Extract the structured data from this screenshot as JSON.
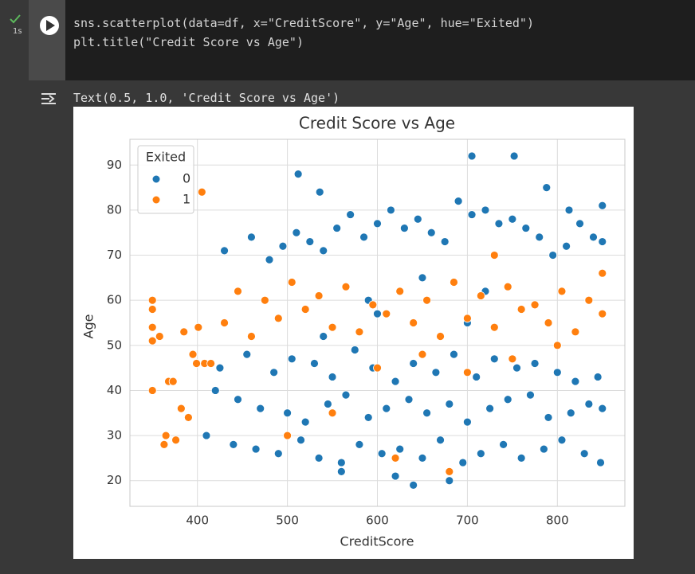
{
  "cell": {
    "status": "1s",
    "code": [
      "sns.scatterplot(data=df, x=\"CreditScore\", y=\"Age\", hue=\"Exited\")",
      "plt.title(\"Credit Score vs Age\")"
    ]
  },
  "output": {
    "text": "Text(0.5, 1.0, 'Credit Score vs Age')"
  },
  "chart_data": {
    "type": "scatter",
    "title": "Credit Score vs Age",
    "x_label": "CreditScore",
    "y_label": "Age",
    "legend_title": "Exited",
    "legend": "upper-left",
    "grid": true,
    "xlim": [
      325,
      875
    ],
    "xticks": [
      400,
      500,
      600,
      700,
      800
    ],
    "ylim": [
      14.3,
      95.7
    ],
    "yticks": [
      20,
      30,
      40,
      50,
      60,
      70,
      80,
      90
    ],
    "series": [
      {
        "name": "0",
        "color": "#1f77b4",
        "x": [
          705,
          752,
          512,
          536,
          788,
          850,
          813,
          430,
          460,
          480,
          495,
          510,
          525,
          540,
          555,
          570,
          585,
          600,
          615,
          630,
          645,
          660,
          675,
          690,
          705,
          720,
          735,
          750,
          765,
          780,
          795,
          810,
          825,
          840,
          850,
          420,
          445,
          470,
          500,
          520,
          545,
          565,
          590,
          610,
          635,
          655,
          680,
          700,
          725,
          745,
          770,
          790,
          815,
          835,
          850,
          410,
          440,
          465,
          490,
          515,
          535,
          560,
          580,
          605,
          625,
          650,
          670,
          695,
          715,
          740,
          760,
          785,
          805,
          830,
          848,
          425,
          455,
          485,
          505,
          530,
          550,
          575,
          595,
          620,
          640,
          665,
          685,
          710,
          730,
          755,
          775,
          800,
          820,
          845,
          620,
          640,
          680,
          560,
          590,
          720,
          650,
          600,
          700,
          540
        ],
        "values": [
          92,
          92,
          88,
          84,
          85,
          81,
          80,
          71,
          74,
          69,
          72,
          75,
          73,
          71,
          76,
          79,
          74,
          77,
          80,
          76,
          78,
          75,
          73,
          82,
          79,
          80,
          77,
          78,
          76,
          74,
          70,
          72,
          77,
          74,
          73,
          40,
          38,
          36,
          35,
          33,
          37,
          39,
          34,
          36,
          38,
          35,
          37,
          33,
          36,
          38,
          39,
          34,
          35,
          37,
          36,
          30,
          28,
          27,
          26,
          29,
          25,
          24,
          28,
          26,
          27,
          25,
          29,
          24,
          26,
          28,
          25,
          27,
          29,
          26,
          24,
          45,
          48,
          44,
          47,
          46,
          43,
          49,
          45,
          42,
          46,
          44,
          48,
          43,
          47,
          45,
          46,
          44,
          42,
          43,
          21,
          19,
          20,
          22,
          60,
          62,
          65,
          57,
          55,
          52
        ]
      },
      {
        "name": "1",
        "color": "#ff7f0e",
        "x": [
          405,
          350,
          350,
          350,
          350,
          350,
          358,
          363,
          365,
          368,
          373,
          376,
          382,
          385,
          390,
          395,
          399,
          401,
          408,
          415,
          430,
          460,
          490,
          520,
          550,
          580,
          610,
          640,
          670,
          700,
          730,
          760,
          790,
          820,
          850,
          445,
          475,
          505,
          535,
          565,
          595,
          625,
          655,
          685,
          715,
          745,
          775,
          805,
          835,
          850,
          600,
          650,
          700,
          750,
          800,
          550,
          500,
          620,
          680,
          730
        ],
        "values": [
          84,
          60,
          58,
          54,
          51,
          40,
          52,
          28,
          30,
          42,
          42,
          29,
          36,
          53,
          34,
          48,
          46,
          54,
          46,
          46,
          55,
          52,
          56,
          58,
          54,
          53,
          57,
          55,
          52,
          56,
          54,
          58,
          55,
          53,
          57,
          62,
          60,
          64,
          61,
          63,
          59,
          62,
          60,
          64,
          61,
          63,
          59,
          62,
          60,
          66,
          45,
          48,
          44,
          47,
          50,
          35,
          30,
          25,
          22,
          70
        ]
      }
    ]
  }
}
